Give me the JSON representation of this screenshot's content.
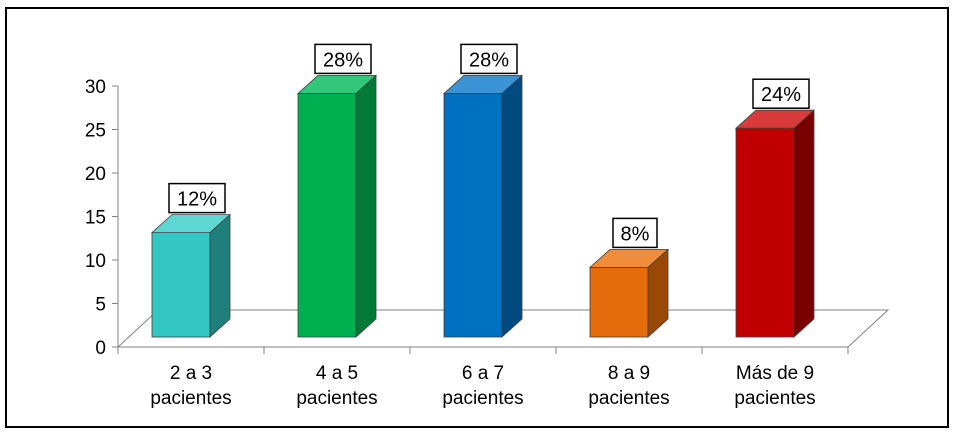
{
  "chart_data": {
    "type": "bar",
    "title": "",
    "xlabel": "",
    "ylabel": "",
    "ylim": [
      0,
      30
    ],
    "yticks": [
      0,
      5,
      10,
      15,
      20,
      25,
      30
    ],
    "grid": false,
    "legend": "none",
    "categories": [
      [
        "2 a 3",
        "pacientes"
      ],
      [
        "4 a 5",
        "pacientes"
      ],
      [
        "6 a 7",
        "pacientes"
      ],
      [
        "8 a 9",
        "pacientes"
      ],
      [
        "Más de 9",
        "pacientes"
      ]
    ],
    "values": [
      12,
      28,
      28,
      8,
      24
    ],
    "data_labels": [
      "12%",
      "28%",
      "28%",
      "8%",
      "24%"
    ],
    "colors": [
      {
        "front": "#33C6C2",
        "side": "#1F7F7C",
        "top": "#5ED6D2"
      },
      {
        "front": "#00B050",
        "side": "#007A36",
        "top": "#33C77A"
      },
      {
        "front": "#0070C0",
        "side": "#004A80",
        "top": "#3A93D4"
      },
      {
        "front": "#E46C0A",
        "side": "#9A4806",
        "top": "#F08C3A"
      },
      {
        "front": "#C00000",
        "side": "#7A0000",
        "top": "#D93A3A"
      }
    ]
  }
}
